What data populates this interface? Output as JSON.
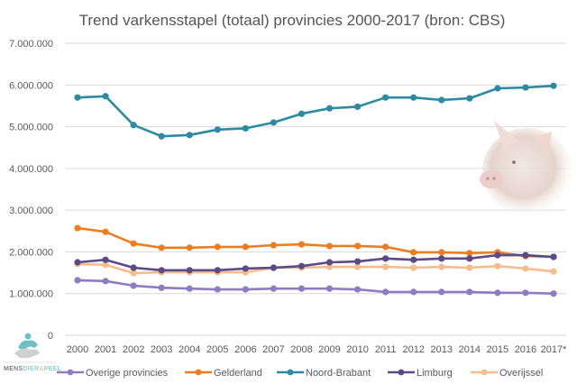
{
  "chart_data": {
    "type": "line",
    "title": "Trend varkensstapel  (totaal) provincies 2000-2017 (bron: CBS)",
    "xlabel": "",
    "ylabel": "",
    "ylim": [
      0,
      7000000
    ],
    "yticks": [
      0,
      1000000,
      2000000,
      3000000,
      4000000,
      5000000,
      6000000,
      7000000
    ],
    "ytick_labels": [
      "0",
      "1.000.000",
      "2.000.000",
      "3.000.000",
      "4.000.000",
      "5.000.000",
      "6.000.000",
      "7.000.000"
    ],
    "grid": true,
    "legend_position": "bottom",
    "x": [
      "2000",
      "2001",
      "2002",
      "2003",
      "2004",
      "2005",
      "2006",
      "2007",
      "2008",
      "2009",
      "2010",
      "2011",
      "2012",
      "2013",
      "2014",
      "2015",
      "2016",
      "2017*"
    ],
    "series": [
      {
        "name": "Overige provincies",
        "color": "#8e7cc3",
        "values": [
          1320000,
          1300000,
          1190000,
          1140000,
          1120000,
          1100000,
          1100000,
          1120000,
          1120000,
          1120000,
          1100000,
          1040000,
          1040000,
          1040000,
          1040000,
          1020000,
          1020000,
          1000000
        ]
      },
      {
        "name": "Gelderland",
        "color": "#ed7d1f",
        "values": [
          2570000,
          2480000,
          2200000,
          2100000,
          2100000,
          2120000,
          2120000,
          2160000,
          2180000,
          2140000,
          2140000,
          2120000,
          1990000,
          1990000,
          1970000,
          1990000,
          1900000,
          1880000
        ]
      },
      {
        "name": "Noord-Brabant",
        "color": "#2e8aa0",
        "values": [
          5700000,
          5730000,
          5040000,
          4770000,
          4800000,
          4930000,
          4960000,
          5100000,
          5310000,
          5440000,
          5480000,
          5700000,
          5700000,
          5640000,
          5680000,
          5920000,
          5940000,
          5980000
        ]
      },
      {
        "name": "Limburg",
        "color": "#5b4a86",
        "values": [
          1750000,
          1810000,
          1620000,
          1560000,
          1560000,
          1560000,
          1600000,
          1620000,
          1660000,
          1750000,
          1770000,
          1840000,
          1810000,
          1840000,
          1840000,
          1920000,
          1920000,
          1880000
        ]
      },
      {
        "name": "Overijssel",
        "color": "#f7bc8c",
        "values": [
          1710000,
          1690000,
          1490000,
          1510000,
          1510000,
          1510000,
          1510000,
          1620000,
          1620000,
          1640000,
          1640000,
          1640000,
          1620000,
          1640000,
          1620000,
          1660000,
          1600000,
          1530000
        ]
      }
    ]
  },
  "logo": {
    "text_part1": "MENS",
    "text_part2": "DIER",
    "text_part3": "&",
    "text_part4": "PEEL"
  },
  "decorations": {
    "image": "pig-head-photo"
  }
}
